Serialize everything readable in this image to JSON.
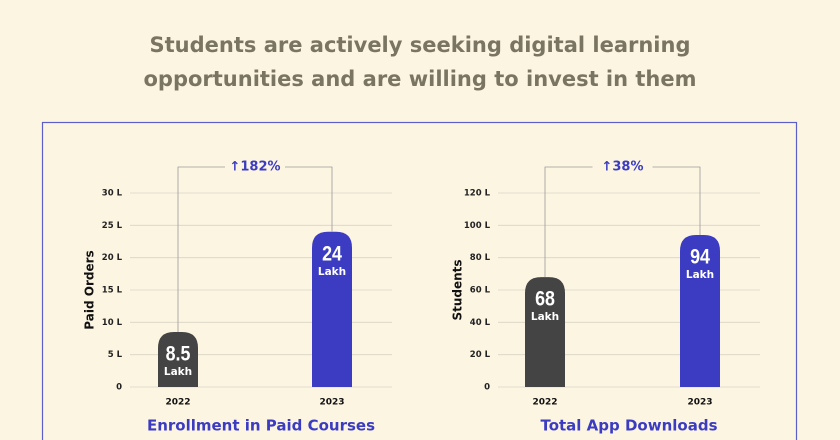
{
  "title": "Students are actively seeking digital learning opportunities and are willing to invest in them",
  "chart_data": [
    {
      "type": "bar",
      "title": "Enrollment in Paid Courses",
      "ylabel": "Paid Orders",
      "categories": [
        "2022",
        "2023"
      ],
      "values": [
        8.5,
        24
      ],
      "value_unit": "Lakh",
      "colors": [
        "#444444",
        "#3b3cc2"
      ],
      "annotation": "↑182%",
      "ylim": [
        0,
        30
      ],
      "yticks": [
        0,
        {
          "value": 5,
          "label": "5 L"
        },
        {
          "value": 10,
          "label": "10 L"
        },
        {
          "value": 15,
          "label": "15 L"
        },
        {
          "value": 20,
          "label": "20 L"
        },
        {
          "value": 25,
          "label": "25 L"
        },
        {
          "value": 30,
          "label": "30 L"
        }
      ],
      "grid": true
    },
    {
      "type": "bar",
      "title": "Total App Downloads",
      "ylabel": "Students",
      "categories": [
        "2022",
        "2023"
      ],
      "values": [
        68,
        94
      ],
      "value_unit": "Lakh",
      "colors": [
        "#444444",
        "#3b3cc2"
      ],
      "annotation": "↑38%",
      "ylim": [
        0,
        120
      ],
      "yticks": [
        0,
        {
          "value": 20,
          "label": "20 L"
        },
        {
          "value": 40,
          "label": "40 L"
        },
        {
          "value": 60,
          "label": "60 L"
        },
        {
          "value": 80,
          "label": "80 L"
        },
        {
          "value": 100,
          "label": "100 L"
        },
        {
          "value": 120,
          "label": "120 L"
        }
      ],
      "grid": true
    }
  ]
}
